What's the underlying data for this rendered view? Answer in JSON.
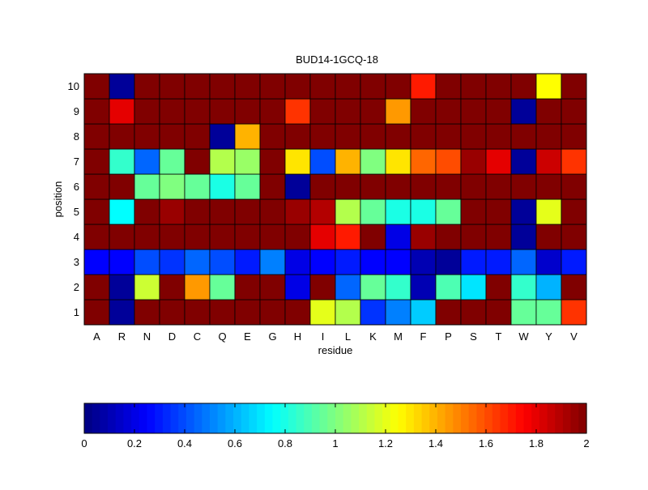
{
  "chart_data": {
    "type": "heatmap",
    "title": "BUD14-1GCQ-18",
    "xlabel": "residue",
    "ylabel": "position",
    "x_categories": [
      "A",
      "R",
      "N",
      "D",
      "C",
      "Q",
      "E",
      "G",
      "H",
      "I",
      "L",
      "K",
      "M",
      "F",
      "P",
      "S",
      "T",
      "W",
      "Y",
      "V"
    ],
    "y_categories": [
      "1",
      "2",
      "3",
      "4",
      "5",
      "6",
      "7",
      "8",
      "9",
      "10"
    ],
    "values": [
      [
        2.0,
        0.05,
        2.0,
        2.0,
        2.0,
        2.0,
        2.0,
        2.0,
        2.0,
        1.2,
        1.1,
        0.35,
        0.5,
        0.65,
        2.0,
        2.0,
        2.0,
        0.95,
        0.95,
        1.65
      ],
      [
        2.0,
        0.05,
        1.15,
        2.0,
        1.45,
        0.95,
        2.0,
        2.0,
        0.2,
        2.0,
        0.45,
        0.95,
        0.85,
        0.1,
        0.9,
        0.7,
        2.0,
        0.85,
        0.6,
        2.0
      ],
      [
        0.25,
        0.25,
        0.4,
        0.35,
        0.45,
        0.4,
        0.3,
        0.5,
        0.2,
        0.25,
        0.3,
        0.25,
        0.25,
        0.1,
        0.05,
        0.3,
        0.3,
        0.45,
        0.15,
        0.3
      ],
      [
        2.0,
        2.0,
        2.0,
        2.0,
        2.0,
        2.0,
        2.0,
        2.0,
        2.0,
        1.8,
        1.7,
        2.0,
        0.2,
        1.95,
        2.0,
        2.0,
        2.0,
        0.05,
        2.0,
        2.0
      ],
      [
        2.0,
        0.75,
        2.0,
        1.95,
        2.0,
        2.0,
        2.0,
        2.0,
        1.95,
        1.9,
        1.1,
        0.95,
        0.8,
        0.8,
        0.95,
        2.0,
        2.0,
        0.05,
        1.2,
        2.0
      ],
      [
        2.0,
        2.0,
        0.95,
        1.0,
        0.95,
        0.8,
        0.95,
        2.0,
        0.05,
        2.0,
        2.0,
        2.0,
        2.0,
        2.0,
        2.0,
        2.0,
        2.0,
        2.0,
        2.0,
        2.0
      ],
      [
        2.0,
        0.85,
        0.45,
        0.95,
        2.0,
        1.1,
        1.05,
        2.0,
        1.3,
        0.4,
        1.4,
        1.0,
        1.3,
        1.55,
        1.6,
        1.95,
        1.8,
        0.05,
        1.85,
        1.65
      ],
      [
        2.0,
        2.0,
        2.0,
        2.0,
        2.0,
        0.05,
        1.4,
        2.0,
        2.0,
        2.0,
        2.0,
        2.0,
        2.0,
        2.0,
        2.0,
        2.0,
        2.0,
        2.0,
        2.0,
        2.0
      ],
      [
        2.0,
        1.8,
        2.0,
        2.0,
        2.0,
        2.0,
        2.0,
        2.0,
        1.65,
        2.0,
        2.0,
        2.0,
        1.45,
        2.0,
        2.0,
        2.0,
        2.0,
        0.05,
        2.0,
        2.0
      ],
      [
        2.0,
        0.05,
        2.0,
        2.0,
        2.0,
        2.0,
        2.0,
        2.0,
        2.0,
        2.0,
        2.0,
        2.0,
        2.0,
        1.7,
        2.0,
        2.0,
        2.0,
        2.0,
        1.25,
        2.0
      ]
    ],
    "value_range": [
      0,
      2
    ],
    "colormap": "jet",
    "colorbar": {
      "placement": "bottom",
      "ticks": [
        0,
        0.2,
        0.4,
        0.6,
        0.8,
        1,
        1.2,
        1.4,
        1.6,
        1.8,
        2
      ],
      "tick_labels": [
        "0",
        "0.2",
        "0.4",
        "0.6",
        "0.8",
        "1",
        "1.2",
        "1.4",
        "1.6",
        "1.8",
        "2"
      ]
    },
    "grid": true
  }
}
